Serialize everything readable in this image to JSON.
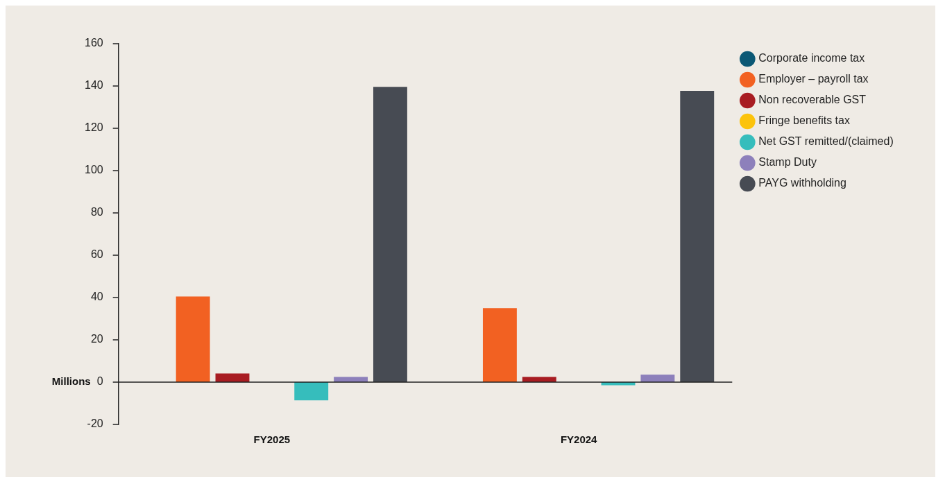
{
  "chart_data": {
    "type": "bar",
    "ylabel": "Millions",
    "categories": [
      "FY2025",
      "FY2024"
    ],
    "series": [
      {
        "name": "Corporate income tax",
        "color": "#0b5875",
        "values": [
          0,
          0
        ]
      },
      {
        "name": "Employer – payroll tax",
        "color": "#f26122",
        "values": [
          40.5,
          35
        ]
      },
      {
        "name": "Non recoverable GST",
        "color": "#a81c22",
        "values": [
          4.1,
          2.5
        ]
      },
      {
        "name": "Fringe benefits tax",
        "color": "#fcc30b",
        "values": [
          0,
          0
        ]
      },
      {
        "name": "Net GST remitted/(claimed)",
        "color": "#36bdbc",
        "values": [
          -8.6,
          -1.5
        ]
      },
      {
        "name": "Stamp Duty",
        "color": "#8d80bb",
        "values": [
          2.5,
          3.5
        ]
      },
      {
        "name": "PAYG withholding",
        "color": "#474b53",
        "values": [
          139.6,
          137.7
        ]
      }
    ],
    "ylim": [
      -20,
      160
    ],
    "yticks": [
      -20,
      0,
      20,
      40,
      60,
      80,
      100,
      120,
      140,
      160
    ],
    "grid": false,
    "ref_lines": [
      {
        "axis": "y",
        "value": 0,
        "color": "#222222"
      }
    ],
    "legend": "top right"
  }
}
